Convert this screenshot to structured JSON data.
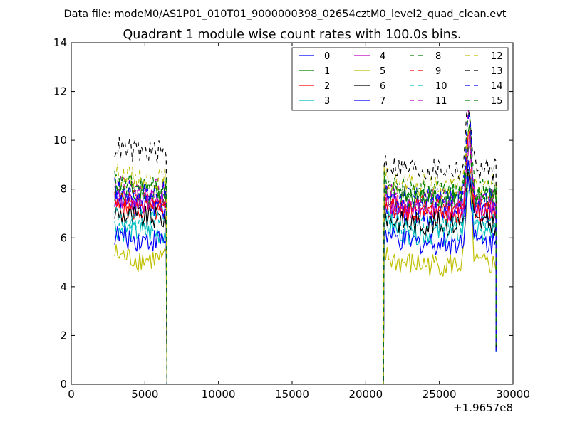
{
  "chart_data": {
    "type": "line",
    "suptitle": "Data file: modeM0/AS1P01_010T01_9000000398_02654cztM0_level2_quad_clean.evt",
    "title": "Quadrant 1 module wise count rates with 100.0s bins.",
    "xlabel": "",
    "ylabel": "",
    "x_offset_label": "+1.9657e8",
    "xlim": [
      0,
      30000
    ],
    "ylim": [
      0,
      14
    ],
    "x_ticks": [
      0,
      5000,
      10000,
      15000,
      20000,
      25000,
      30000
    ],
    "x_tick_labels": [
      "0",
      "5000",
      "10000",
      "15000",
      "20000",
      "25000",
      "30000"
    ],
    "y_ticks": [
      0,
      2,
      4,
      6,
      8,
      10,
      12,
      14
    ],
    "y_tick_labels": [
      "0",
      "2",
      "4",
      "6",
      "8",
      "10",
      "12",
      "14"
    ],
    "grid": false,
    "legend_position": "top-right",
    "legend_columns": 4,
    "segments": [
      {
        "x_start": 2950,
        "x_end": 6450
      },
      {
        "x_start": 21250,
        "x_end": 28850
      }
    ],
    "gap": {
      "x_start": 6500,
      "x_end": 21200,
      "value": 0
    },
    "flare": {
      "x": 27000,
      "boost": 3.4
    },
    "series": [
      {
        "name": "0",
        "color": "#0000ff",
        "dash": "solid",
        "level1": 7.3,
        "level2": 7.0
      },
      {
        "name": "1",
        "color": "#008000",
        "dash": "solid",
        "level1": 7.7,
        "level2": 7.6
      },
      {
        "name": "2",
        "color": "#ff0000",
        "dash": "solid",
        "level1": 7.1,
        "level2": 7.0
      },
      {
        "name": "3",
        "color": "#00bfbf",
        "dash": "solid",
        "level1": 6.2,
        "level2": 6.2
      },
      {
        "name": "4",
        "color": "#bf00bf",
        "dash": "solid",
        "level1": 7.5,
        "level2": 7.2
      },
      {
        "name": "5",
        "color": "#bfbf00",
        "dash": "solid",
        "level1": 5.1,
        "level2": 4.9
      },
      {
        "name": "6",
        "color": "#000000",
        "dash": "solid",
        "level1": 6.8,
        "level2": 6.6
      },
      {
        "name": "7",
        "color": "#0000ff",
        "dash": "solid",
        "level1": 5.9,
        "level2": 5.8
      },
      {
        "name": "8",
        "color": "#008000",
        "dash": "dashed",
        "level1": 8.1,
        "level2": 7.8
      },
      {
        "name": "9",
        "color": "#ff0000",
        "dash": "dashed",
        "level1": 7.4,
        "level2": 7.3
      },
      {
        "name": "10",
        "color": "#00bfbf",
        "dash": "dashed",
        "level1": 6.7,
        "level2": 6.5
      },
      {
        "name": "11",
        "color": "#bf00bf",
        "dash": "dashed",
        "level1": 7.9,
        "level2": 7.5
      },
      {
        "name": "12",
        "color": "#bfbf00",
        "dash": "dashed",
        "level1": 8.4,
        "level2": 8.1
      },
      {
        "name": "13",
        "color": "#000000",
        "dash": "dashed",
        "level1": 9.5,
        "level2": 8.8
      },
      {
        "name": "14",
        "color": "#0000ff",
        "dash": "dashed",
        "level1": 7.8,
        "level2": 7.6
      },
      {
        "name": "15",
        "color": "#008000",
        "dash": "dashed",
        "level1": 8.0,
        "level2": 7.9
      }
    ]
  }
}
